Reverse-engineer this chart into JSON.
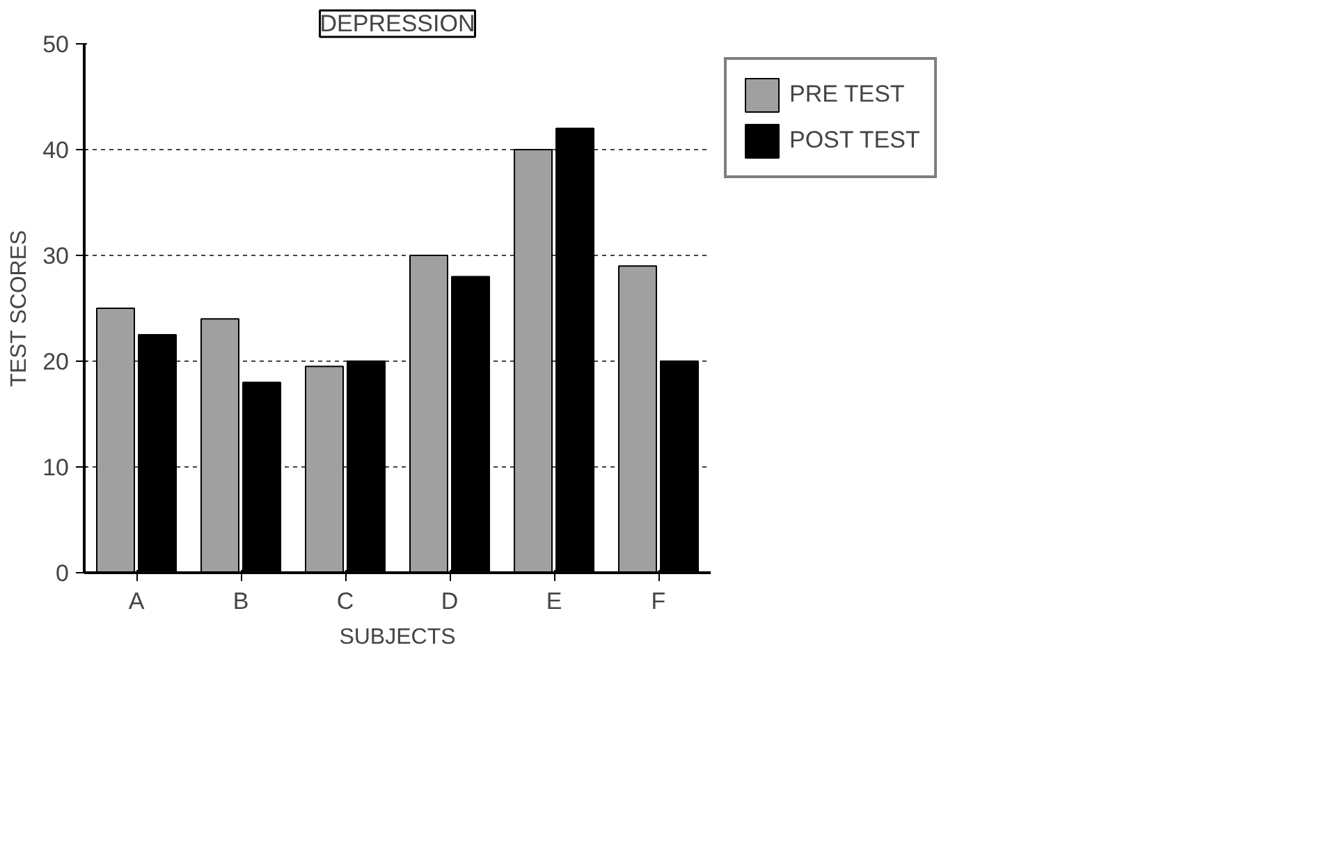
{
  "chart_data": {
    "type": "bar",
    "title": "DEPRESSION",
    "xlabel": "SUBJECTS",
    "ylabel": "TEST SCORES",
    "categories": [
      "A",
      "B",
      "C",
      "D",
      "E",
      "F"
    ],
    "series": [
      {
        "name": "PRE TEST",
        "color": "#a0a0a0",
        "values": [
          25,
          24,
          19.5,
          30,
          40,
          29
        ]
      },
      {
        "name": "POST TEST",
        "color": "#000000",
        "values": [
          22.5,
          18,
          20,
          28,
          42,
          20
        ]
      }
    ],
    "ylim": [
      0,
      50
    ],
    "yticks": [
      0,
      10,
      20,
      30,
      40,
      50
    ],
    "grid": "y",
    "legend": "top right"
  }
}
